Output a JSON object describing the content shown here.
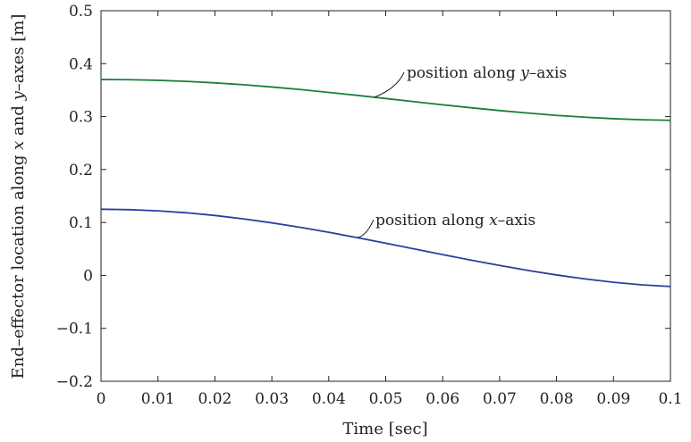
{
  "chart_data": {
    "type": "line",
    "title": "",
    "xlabel": "Time [sec]",
    "ylabel_parts": [
      {
        "text": "End–effector location along ",
        "italic": false
      },
      {
        "text": "x",
        "italic": true
      },
      {
        "text": " and ",
        "italic": false
      },
      {
        "text": "y",
        "italic": true
      },
      {
        "text": "–axes [m]",
        "italic": false
      }
    ],
    "xlim": [
      0,
      0.1
    ],
    "ylim": [
      -0.2,
      0.5
    ],
    "x_ticks": [
      0,
      0.01,
      0.02,
      0.03,
      0.04,
      0.05,
      0.06,
      0.07,
      0.08,
      0.09,
      0.1
    ],
    "x_tick_labels": [
      "0",
      "0.01",
      "0.02",
      "0.03",
      "0.04",
      "0.05",
      "0.06",
      "0.07",
      "0.08",
      "0.09",
      "0.1"
    ],
    "y_ticks": [
      -0.2,
      -0.1,
      0,
      0.1,
      0.2,
      0.3,
      0.4,
      0.5
    ],
    "y_tick_labels": [
      "−0.2",
      "−0.1",
      "0",
      "0.1",
      "0.2",
      "0.3",
      "0.4",
      "0.5"
    ],
    "grid": false,
    "legend": "none",
    "series": [
      {
        "key": "y-position",
        "color": "#1a7f3c",
        "x": [
          0,
          0.005,
          0.01,
          0.015,
          0.02,
          0.025,
          0.03,
          0.035,
          0.04,
          0.045,
          0.05,
          0.055,
          0.06,
          0.065,
          0.07,
          0.075,
          0.08,
          0.085,
          0.09,
          0.095,
          0.1
        ],
        "y": [
          0.37,
          0.3697,
          0.3685,
          0.3665,
          0.3637,
          0.3602,
          0.3559,
          0.3511,
          0.3457,
          0.3401,
          0.3342,
          0.3282,
          0.3223,
          0.3167,
          0.3114,
          0.3066,
          0.3023,
          0.2988,
          0.296,
          0.294,
          0.293
        ]
      },
      {
        "key": "x-position",
        "color": "#2c3e9e",
        "x": [
          0,
          0.005,
          0.01,
          0.015,
          0.02,
          0.025,
          0.03,
          0.035,
          0.04,
          0.045,
          0.05,
          0.055,
          0.06,
          0.065,
          0.07,
          0.075,
          0.08,
          0.085,
          0.09,
          0.095,
          0.1
        ],
        "y": [
          0.125,
          0.1242,
          0.122,
          0.1183,
          0.1132,
          0.1068,
          0.0993,
          0.0908,
          0.0814,
          0.0713,
          0.0608,
          0.0501,
          0.0393,
          0.0288,
          0.0188,
          0.0094,
          0.0008,
          -0.0067,
          -0.013,
          -0.0178,
          -0.021
        ]
      }
    ],
    "annotations": [
      {
        "key": "y-annot",
        "parts": [
          {
            "text": "position along ",
            "italic": false
          },
          {
            "text": "y",
            "italic": true
          },
          {
            "text": "–axis",
            "italic": false
          }
        ],
        "target_x": 0.048,
        "series": "y-position"
      },
      {
        "key": "x-annot",
        "parts": [
          {
            "text": "position along ",
            "italic": false
          },
          {
            "text": "x",
            "italic": true
          },
          {
            "text": "–axis",
            "italic": false
          }
        ],
        "target_x": 0.045,
        "series": "x-position"
      }
    ]
  }
}
